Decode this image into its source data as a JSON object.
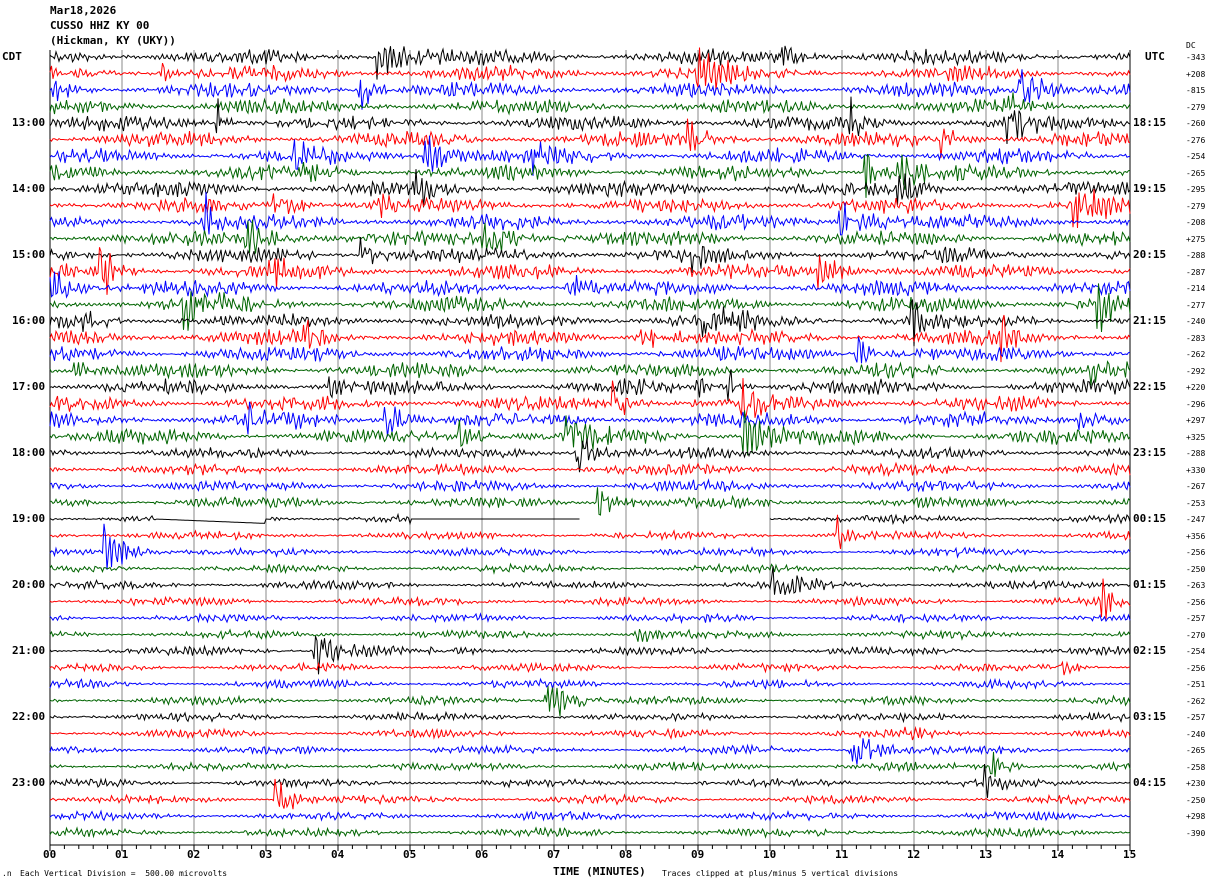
{
  "header": {
    "date": "Mar18,2026",
    "station": "CUSSO HHZ KY 00",
    "location": "(Hickman, KY (UKY))"
  },
  "left_zone_label": "CDT",
  "right_zone_label": "UTC",
  "dc_label": "DC",
  "footer": {
    "scale_note": "Each Vertical Division =  500.00 microvolts",
    "xlabel": "TIME (MINUTES)",
    "clip_note": "Traces clipped at plus/minus 5 vertical divisions"
  },
  "chart_data": {
    "type": "line",
    "subtype": "helicorder",
    "title": [
      "Mar18,2026",
      "CUSSO HHZ KY 00",
      "(Hickman, KY (UKY))"
    ],
    "xlabel": "TIME (MINUTES)",
    "xlim": [
      0,
      15
    ],
    "x_ticks": [
      "00",
      "01",
      "02",
      "03",
      "04",
      "05",
      "06",
      "07",
      "08",
      "09",
      "10",
      "11",
      "12",
      "13",
      "14",
      "15"
    ],
    "grid": true,
    "trace_colors": [
      "#000000",
      "#ff0000",
      "#0000ff",
      "#006400"
    ],
    "rows_per_hour": 4,
    "left_time_labels": [
      "13:00",
      "14:00",
      "15:00",
      "16:00",
      "17:00",
      "18:00",
      "19:00",
      "20:00",
      "21:00",
      "22:00",
      "23:00"
    ],
    "right_time_labels": [
      "18:15",
      "19:15",
      "20:15",
      "21:15",
      "22:15",
      "23:15",
      "00:15",
      "01:15",
      "02:15",
      "03:15",
      "04:15"
    ],
    "dc_offsets": [
      "-343",
      "+208",
      "-815",
      "-279",
      "-260",
      "-276",
      "-254",
      "-265",
      "-295",
      "-279",
      "-208",
      "+275",
      "-288",
      "-287",
      "-214",
      "-277",
      "-240",
      "-283",
      "-262",
      "-292",
      "+220",
      "-296",
      "+297",
      "+325",
      "-288",
      "+330",
      "-267",
      "-253",
      "-247",
      "+356",
      "-256",
      "-250",
      "-263",
      "-256",
      "-257",
      "-270",
      "-254",
      "-256",
      "-251",
      "-262",
      "-257",
      "-240",
      "-265",
      "-258",
      "+230",
      "-250",
      "+298",
      "-390"
    ]
  }
}
